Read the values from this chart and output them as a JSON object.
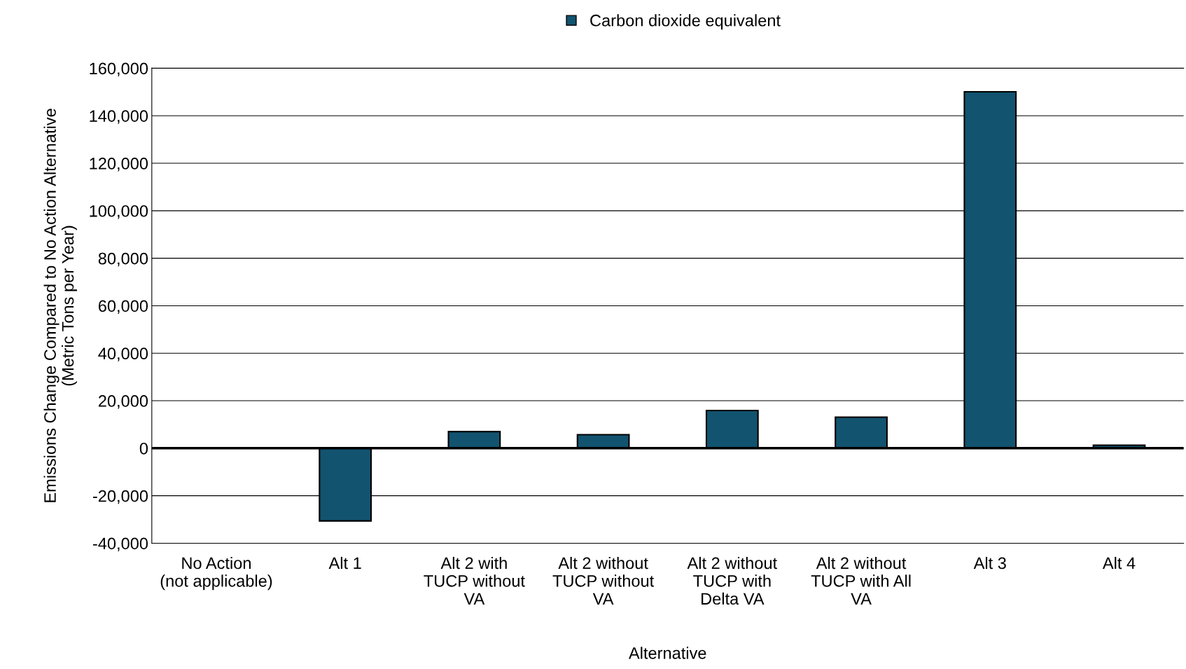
{
  "chart_data": {
    "type": "bar",
    "xlabel": "Alternative",
    "ylabel": "Emissions Change Compared to No Action Alternative\n(Metric Tons per Year)",
    "categories": [
      "No Action\n(not applicable)",
      "Alt 1",
      "Alt 2 with\nTUCP without\nVA",
      "Alt 2 without\nTUCP without\nVA",
      "Alt 2 without\nTUCP with\nDelta VA",
      "Alt 2 without\nTUCP with All\nVA",
      "Alt 3",
      "Alt 4"
    ],
    "series": [
      {
        "name": "Carbon dioxide equivalent",
        "color": "#12536f",
        "values": [
          null,
          -30600,
          7000,
          5700,
          15900,
          13100,
          150100,
          1300
        ]
      }
    ],
    "ylim": [
      -40000,
      160000
    ],
    "yticks": [
      {
        "value": -40000,
        "label": "-40,000"
      },
      {
        "value": -20000,
        "label": "-20,000"
      },
      {
        "value": 0,
        "label": "0"
      },
      {
        "value": 20000,
        "label": "20,000"
      },
      {
        "value": 40000,
        "label": "40,000"
      },
      {
        "value": 60000,
        "label": "60,000"
      },
      {
        "value": 80000,
        "label": "80,000"
      },
      {
        "value": 100000,
        "label": "100,000"
      },
      {
        "value": 120000,
        "label": "120,000"
      },
      {
        "value": 140000,
        "label": "140,000"
      },
      {
        "value": 160000,
        "label": "160,000"
      }
    ],
    "grid": "y",
    "legend": "top"
  }
}
